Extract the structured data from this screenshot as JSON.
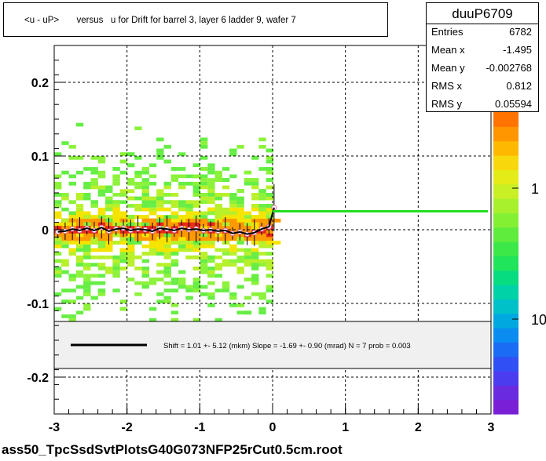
{
  "title": "<u - uP>       versus   u for Drift for barrel 3, layer 6 ladder 9, wafer 7",
  "stats": {
    "name": "duuP6709",
    "rows": [
      {
        "label": "Entries",
        "value": "6782"
      },
      {
        "label": "Mean x",
        "value": "-1.495"
      },
      {
        "label": "Mean y",
        "value": "-0.002768"
      },
      {
        "label": "RMS x",
        "value": "0.812"
      },
      {
        "label": "RMS y",
        "value": "0.05594"
      }
    ]
  },
  "fit_legend": "Shift =     1.01 +- 5.12 (mkm) Slope =    -1.69 +- 0.90 (mrad)  N = 7 prob = 0.003",
  "footer": "ass50_TpcSsdSvtPlotsG40G073NFP25rCut0.5cm.root",
  "colors": {
    "fit_line": "#22dd22",
    "profile": "#000000",
    "marker": "#e060a0"
  },
  "chart_data": {
    "type": "heatmap",
    "xlim": [
      -3,
      3
    ],
    "ylim": [
      -0.25,
      0.25
    ],
    "x_ticks": [
      "-3",
      "-2",
      "-1",
      "0",
      "1",
      "2",
      "3"
    ],
    "y_ticks": [
      "-0.2",
      "-0.1",
      "0",
      "0.1",
      "0.2"
    ],
    "grid": true,
    "colorbar": {
      "scale": "log",
      "ticks": [
        "1",
        "10"
      ]
    },
    "fit_line": {
      "x": [
        0.0,
        3.0
      ],
      "y": [
        0.025,
        0.025
      ]
    },
    "profile": {
      "x": [
        -2.95,
        -2.85,
        -2.75,
        -2.65,
        -2.55,
        -2.45,
        -2.35,
        -2.25,
        -2.15,
        -2.05,
        -1.95,
        -1.85,
        -1.75,
        -1.65,
        -1.55,
        -1.45,
        -1.35,
        -1.25,
        -1.15,
        -1.05,
        -0.95,
        -0.85,
        -0.75,
        -0.65,
        -0.55,
        -0.45,
        -0.35,
        -0.25,
        -0.15,
        -0.05,
        0.02
      ],
      "y": [
        -0.003,
        -0.002,
        0.001,
        -0.001,
        0.002,
        -0.001,
        0.003,
        -0.002,
        0.001,
        0.002,
        -0.001,
        0.001,
        0.0,
        -0.002,
        0.002,
        0.001,
        -0.001,
        0.002,
        0.0,
        0.001,
        -0.001,
        0.0,
        -0.002,
        -0.001,
        -0.005,
        -0.003,
        -0.006,
        -0.004,
        0.001,
        0.004,
        0.03
      ]
    }
  }
}
